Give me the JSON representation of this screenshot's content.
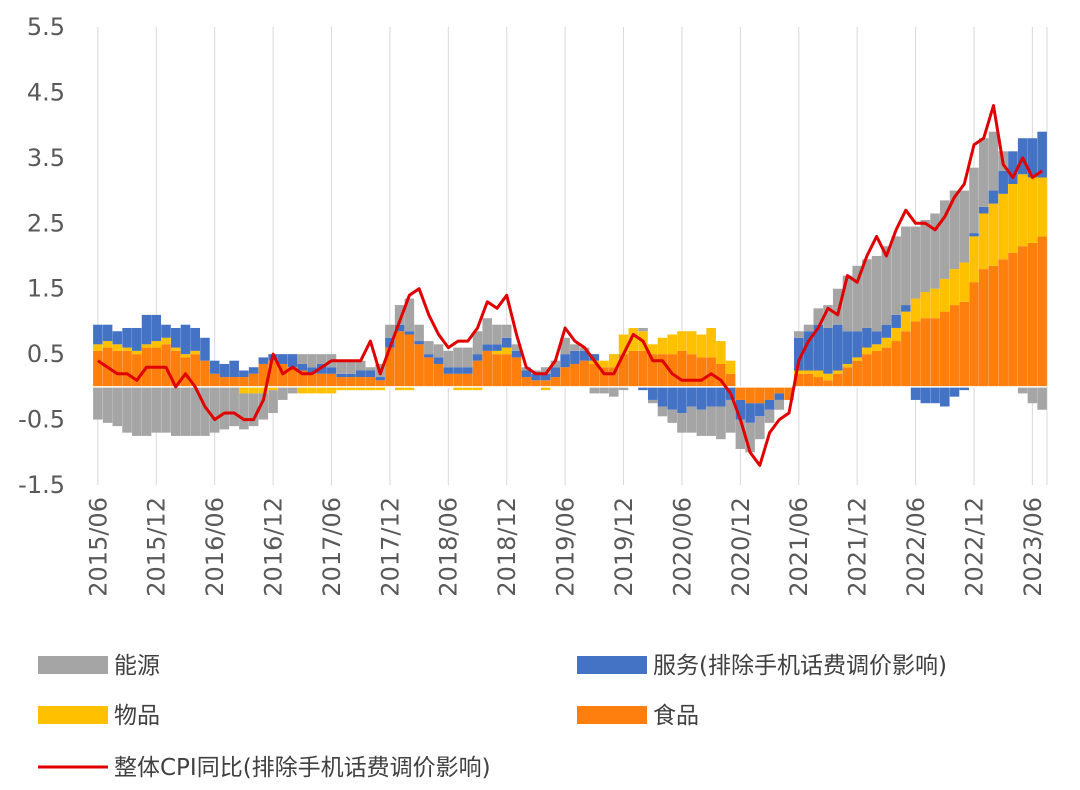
{
  "chart_data": {
    "type": "bar",
    "stacked": true,
    "title": "",
    "xlabel": "",
    "ylabel": "",
    "ylim": [
      -1.5,
      5.5
    ],
    "yticks": [
      -1.5,
      -0.5,
      0.5,
      1.5,
      2.5,
      3.5,
      4.5,
      5.5
    ],
    "y_tick_labels": [
      "-1.5",
      "-0.5",
      "0.5",
      "1.5",
      "2.5",
      "3.5",
      "4.5",
      "5.5"
    ],
    "grid": "vertical",
    "legend_position": "bottom",
    "x_tick_labels": [
      "2015/06",
      "2015/12",
      "2016/06",
      "2016/12",
      "2017/06",
      "2017/12",
      "2018/06",
      "2018/12",
      "2019/06",
      "2019/12",
      "2020/06",
      "2020/12",
      "2021/06",
      "2021/12",
      "2022/06",
      "2022/12",
      "2023/06"
    ],
    "x_tick_every": 6,
    "months": [
      "2015/06",
      "2015/07",
      "2015/08",
      "2015/09",
      "2015/10",
      "2015/11",
      "2015/12",
      "2016/01",
      "2016/02",
      "2016/03",
      "2016/04",
      "2016/05",
      "2016/06",
      "2016/07",
      "2016/08",
      "2016/09",
      "2016/10",
      "2016/11",
      "2016/12",
      "2017/01",
      "2017/02",
      "2017/03",
      "2017/04",
      "2017/05",
      "2017/06",
      "2017/07",
      "2017/08",
      "2017/09",
      "2017/10",
      "2017/11",
      "2017/12",
      "2018/01",
      "2018/02",
      "2018/03",
      "2018/04",
      "2018/05",
      "2018/06",
      "2018/07",
      "2018/08",
      "2018/09",
      "2018/10",
      "2018/11",
      "2018/12",
      "2019/01",
      "2019/02",
      "2019/03",
      "2019/04",
      "2019/05",
      "2019/06",
      "2019/07",
      "2019/08",
      "2019/09",
      "2019/10",
      "2019/11",
      "2019/12",
      "2020/01",
      "2020/02",
      "2020/03",
      "2020/04",
      "2020/05",
      "2020/06",
      "2020/07",
      "2020/08",
      "2020/09",
      "2020/10",
      "2020/11",
      "2020/12",
      "2021/01",
      "2021/02",
      "2021/03",
      "2021/04",
      "2021/05",
      "2021/06",
      "2021/07",
      "2021/08",
      "2021/09",
      "2021/10",
      "2021/11",
      "2021/12",
      "2022/01",
      "2022/02",
      "2022/03",
      "2022/04",
      "2022/05",
      "2022/06",
      "2022/07",
      "2022/08",
      "2022/09",
      "2022/10",
      "2022/11",
      "2022/12",
      "2023/01",
      "2023/02",
      "2023/03",
      "2023/04",
      "2023/05",
      "2023/06",
      "2023/07"
    ],
    "series": [
      {
        "name": "食品",
        "color": "#ff7f0e",
        "kind": "bar",
        "values": [
          0.55,
          0.6,
          0.55,
          0.55,
          0.5,
          0.6,
          0.6,
          0.65,
          0.55,
          0.45,
          0.5,
          0.4,
          0.2,
          0.15,
          0.15,
          0.15,
          0.2,
          0.35,
          0.4,
          0.35,
          0.3,
          0.25,
          0.2,
          0.2,
          0.2,
          0.15,
          0.15,
          0.15,
          0.15,
          0.1,
          0.6,
          0.85,
          0.8,
          0.65,
          0.45,
          0.35,
          0.2,
          0.2,
          0.2,
          0.4,
          0.55,
          0.5,
          0.5,
          0.45,
          0.15,
          0.1,
          0.1,
          0.15,
          0.3,
          0.35,
          0.4,
          0.35,
          0.3,
          0.3,
          0.5,
          0.55,
          0.55,
          0.5,
          0.5,
          0.5,
          0.55,
          0.5,
          0.45,
          0.45,
          0.35,
          0.2,
          -0.2,
          -0.25,
          -0.25,
          -0.2,
          -0.1,
          -0.2,
          0.2,
          0.2,
          0.15,
          0.1,
          0.2,
          0.3,
          0.4,
          0.5,
          0.55,
          0.6,
          0.7,
          0.85,
          1.0,
          1.05,
          1.05,
          1.15,
          1.25,
          1.3,
          1.6,
          1.8,
          1.85,
          1.95,
          2.05,
          2.15,
          2.2,
          2.3
        ]
      },
      {
        "name": "物品",
        "color": "#ffc000",
        "kind": "bar",
        "values": [
          0.1,
          0.1,
          0.1,
          0.05,
          0.05,
          0.05,
          0.1,
          0.1,
          0.05,
          0.05,
          0.05,
          0.0,
          0.0,
          0.0,
          0.0,
          -0.1,
          -0.1,
          -0.1,
          -0.05,
          0.0,
          0.0,
          -0.1,
          -0.1,
          -0.1,
          -0.1,
          -0.05,
          -0.05,
          -0.05,
          -0.05,
          -0.05,
          0.0,
          -0.05,
          -0.05,
          0.0,
          0.0,
          0.0,
          0.0,
          -0.05,
          -0.05,
          -0.05,
          0.0,
          0.05,
          0.1,
          0.0,
          0.0,
          0.0,
          -0.05,
          0.0,
          0.0,
          0.0,
          0.0,
          0.05,
          0.1,
          0.2,
          0.3,
          0.35,
          0.3,
          0.15,
          0.25,
          0.3,
          0.3,
          0.35,
          0.35,
          0.45,
          0.35,
          0.2,
          0.0,
          0.0,
          0.0,
          0.0,
          0.0,
          0.0,
          0.05,
          0.05,
          0.1,
          0.1,
          0.05,
          0.05,
          0.05,
          0.1,
          0.1,
          0.15,
          0.2,
          0.3,
          0.35,
          0.4,
          0.45,
          0.5,
          0.55,
          0.6,
          0.7,
          0.85,
          0.95,
          1.0,
          1.05,
          1.1,
          1.0,
          0.9
        ]
      },
      {
        "name": "服务(排除手机话费调价影响)",
        "color": "#4472c4",
        "kind": "bar",
        "values": [
          0.3,
          0.25,
          0.2,
          0.3,
          0.35,
          0.45,
          0.4,
          0.2,
          0.3,
          0.45,
          0.35,
          0.35,
          0.2,
          0.2,
          0.25,
          0.1,
          0.1,
          0.1,
          0.1,
          0.15,
          0.2,
          0.1,
          0.1,
          0.15,
          0.1,
          0.05,
          0.05,
          0.1,
          0.1,
          0.05,
          0.15,
          0.1,
          0.05,
          0.05,
          0.05,
          0.1,
          0.1,
          0.1,
          0.1,
          0.1,
          0.1,
          0.1,
          0.15,
          0.1,
          0.1,
          0.1,
          0.1,
          0.15,
          0.2,
          0.2,
          0.15,
          0.1,
          0.0,
          0.0,
          0.0,
          0.0,
          -0.05,
          -0.2,
          -0.3,
          -0.35,
          -0.4,
          -0.3,
          -0.35,
          -0.3,
          -0.3,
          -0.2,
          -0.3,
          -0.3,
          -0.2,
          -0.15,
          -0.1,
          0.0,
          0.5,
          0.6,
          0.7,
          0.7,
          0.7,
          0.5,
          0.4,
          0.3,
          0.2,
          0.2,
          0.2,
          0.1,
          -0.2,
          -0.25,
          -0.25,
          -0.3,
          -0.15,
          -0.05,
          0.05,
          0.1,
          0.2,
          0.35,
          0.5,
          0.55,
          0.6,
          0.7
        ]
      },
      {
        "name": "能源",
        "color": "#a5a5a5",
        "kind": "bar",
        "values": [
          -0.5,
          -0.55,
          -0.6,
          -0.7,
          -0.75,
          -0.75,
          -0.7,
          -0.7,
          -0.75,
          -0.75,
          -0.75,
          -0.75,
          -0.7,
          -0.65,
          -0.6,
          -0.55,
          -0.5,
          -0.4,
          -0.35,
          -0.2,
          -0.1,
          0.15,
          0.2,
          0.15,
          0.2,
          0.2,
          0.2,
          0.15,
          0.05,
          0.2,
          0.2,
          0.3,
          0.5,
          0.25,
          0.2,
          0.2,
          0.25,
          0.3,
          0.3,
          0.35,
          0.4,
          0.3,
          0.2,
          0.1,
          0.05,
          0.05,
          0.1,
          0.1,
          0.25,
          0.1,
          0.05,
          -0.1,
          -0.1,
          -0.15,
          -0.05,
          0.0,
          0.05,
          -0.05,
          -0.15,
          -0.2,
          -0.3,
          -0.4,
          -0.4,
          -0.45,
          -0.5,
          -0.5,
          -0.45,
          -0.45,
          -0.35,
          -0.2,
          -0.15,
          0.0,
          0.1,
          0.1,
          0.25,
          0.35,
          0.55,
          0.85,
          1.0,
          1.05,
          1.15,
          1.2,
          1.2,
          1.2,
          1.1,
          1.1,
          1.15,
          1.2,
          1.2,
          1.1,
          1.0,
          1.05,
          0.9,
          0.3,
          0.0,
          -0.1,
          -0.25,
          -0.35
        ]
      },
      {
        "name": "整体CPI同比(排除手机话费调价影响)",
        "color": "#e00000",
        "kind": "line",
        "values": [
          0.4,
          0.3,
          0.2,
          0.2,
          0.1,
          0.3,
          0.3,
          0.3,
          0.0,
          0.2,
          0.0,
          -0.3,
          -0.5,
          -0.4,
          -0.4,
          -0.5,
          -0.5,
          -0.2,
          0.5,
          0.2,
          0.3,
          0.2,
          0.2,
          0.3,
          0.4,
          0.4,
          0.4,
          0.4,
          0.7,
          0.2,
          0.6,
          1.0,
          1.4,
          1.5,
          1.1,
          0.8,
          0.6,
          0.7,
          0.7,
          0.9,
          1.3,
          1.2,
          1.4,
          0.8,
          0.3,
          0.2,
          0.2,
          0.4,
          0.9,
          0.7,
          0.6,
          0.4,
          0.2,
          0.2,
          0.5,
          0.8,
          0.7,
          0.4,
          0.4,
          0.2,
          0.1,
          0.1,
          0.1,
          0.2,
          0.1,
          -0.1,
          -0.5,
          -1.0,
          -1.2,
          -0.7,
          -0.5,
          -0.4,
          0.4,
          0.7,
          0.9,
          1.2,
          1.1,
          1.7,
          1.6,
          2.0,
          2.3,
          2.0,
          2.4,
          2.7,
          2.5,
          2.5,
          2.4,
          2.6,
          2.9,
          3.1,
          3.7,
          3.8,
          4.3,
          3.4,
          3.2,
          3.5,
          3.2,
          3.3
        ]
      }
    ],
    "legend": [
      {
        "label": "能源",
        "color": "#a5a5a5",
        "kind": "box"
      },
      {
        "label": "服务(排除手机话费调价影响)",
        "color": "#4472c4",
        "kind": "box"
      },
      {
        "label": "物品",
        "color": "#ffc000",
        "kind": "box"
      },
      {
        "label": "食品",
        "color": "#ff7f0e",
        "kind": "box"
      },
      {
        "label": "整体CPI同比(排除手机话费调价影响)",
        "color": "#e00000",
        "kind": "line"
      }
    ]
  }
}
